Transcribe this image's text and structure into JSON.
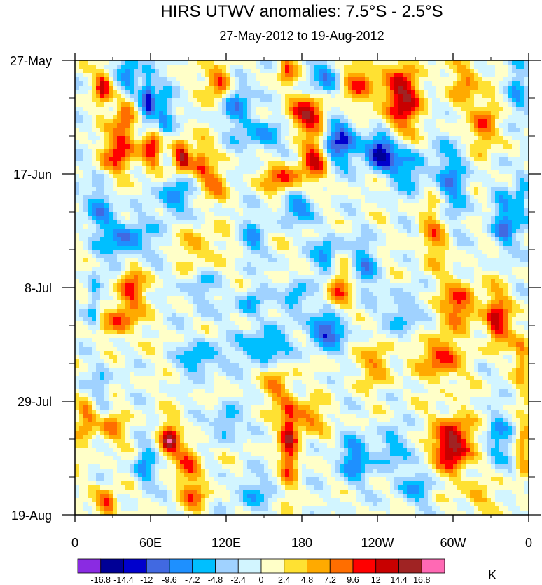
{
  "chart_data": {
    "type": "heatmap",
    "title": "HIRS UTWV anomalies: 7.5°S - 2.5°S",
    "subtitle": "27-May-2012 to 19-Aug-2012",
    "x_ticks": [
      "0",
      "60E",
      "120E",
      "180",
      "120W",
      "60W",
      "0"
    ],
    "x_tick_values": [
      0,
      60,
      120,
      180,
      240,
      300,
      360
    ],
    "xlim": [
      0,
      360
    ],
    "y_ticks": [
      "27-May",
      "17-Jun",
      "8-Jul",
      "29-Jul",
      "19-Aug"
    ],
    "y_tick_days": [
      0,
      21,
      42,
      63,
      84
    ],
    "ylim_days": [
      0,
      84
    ],
    "y_minor_step_days": 7,
    "colorbar": {
      "unit": "K",
      "levels": [
        "-16.8",
        "-14.4",
        "-12",
        "-9.6",
        "-7.2",
        "-4.8",
        "-2.4",
        "0",
        "2.4",
        "4.8",
        "7.2",
        "9.6",
        "12",
        "14.4",
        "16.8"
      ],
      "level_values": [
        -16.8,
        -14.4,
        -12,
        -9.6,
        -7.2,
        -4.8,
        -2.4,
        0,
        2.4,
        4.8,
        7.2,
        9.6,
        12,
        14.4,
        16.8
      ],
      "colors": [
        "#8a2be2",
        "#000096",
        "#0000cd",
        "#4169e1",
        "#1e90ff",
        "#00bfff",
        "#a0d2ff",
        "#d2f5ff",
        "#ffffc8",
        "#ffe132",
        "#ffaa00",
        "#ff6e00",
        "#ff0000",
        "#c80000",
        "#a02323",
        "#ff69b4"
      ]
    },
    "features": [
      {
        "x": 22,
        "d": 5,
        "v": 12,
        "rx": 6,
        "rd": 3
      },
      {
        "x": 40,
        "d": 10,
        "v": 11,
        "rx": 8,
        "rd": 4
      },
      {
        "x": 43,
        "d": 3,
        "v": -9,
        "rx": 8,
        "rd": 5
      },
      {
        "x": 58,
        "d": 8,
        "v": -13,
        "rx": 6,
        "rd": 6
      },
      {
        "x": 70,
        "d": 10,
        "v": -8,
        "rx": 7,
        "rd": 5
      },
      {
        "x": 115,
        "d": 4,
        "v": 12,
        "rx": 10,
        "rd": 3
      },
      {
        "x": 130,
        "d": 8,
        "v": -8,
        "rx": 12,
        "rd": 5
      },
      {
        "x": 168,
        "d": 2,
        "v": 9,
        "rx": 7,
        "rd": 3
      },
      {
        "x": 200,
        "d": 3,
        "v": -7,
        "rx": 15,
        "rd": 4
      },
      {
        "x": 225,
        "d": 4,
        "v": 9,
        "rx": 15,
        "rd": 4
      },
      {
        "x": 260,
        "d": 7,
        "v": 14,
        "rx": 15,
        "rd": 6
      },
      {
        "x": 310,
        "d": 4,
        "v": 8,
        "rx": 10,
        "rd": 4
      },
      {
        "x": 325,
        "d": 12,
        "v": 10,
        "rx": 10,
        "rd": 5
      },
      {
        "x": 350,
        "d": 6,
        "v": -7,
        "rx": 8,
        "rd": 6
      },
      {
        "x": 185,
        "d": 10,
        "v": 14,
        "rx": 15,
        "rd": 3
      },
      {
        "x": 150,
        "d": 14,
        "v": -8,
        "rx": 15,
        "rd": 3
      },
      {
        "x": 35,
        "d": 17,
        "v": 11,
        "rx": 12,
        "rd": 4
      },
      {
        "x": 60,
        "d": 16,
        "v": 13,
        "rx": 8,
        "rd": 4
      },
      {
        "x": 85,
        "d": 18,
        "v": 16,
        "rx": 7,
        "rd": 3
      },
      {
        "x": 100,
        "d": 19,
        "v": 8,
        "rx": 8,
        "rd": 4
      },
      {
        "x": 210,
        "d": 15,
        "v": -12,
        "rx": 15,
        "rd": 4
      },
      {
        "x": 242,
        "d": 17,
        "v": -16,
        "rx": 12,
        "rd": 3
      },
      {
        "x": 265,
        "d": 20,
        "v": -8,
        "rx": 15,
        "rd": 4
      },
      {
        "x": 165,
        "d": 22,
        "v": 10,
        "rx": 15,
        "rd": 3
      },
      {
        "x": 190,
        "d": 18,
        "v": 12,
        "rx": 10,
        "rd": 4
      },
      {
        "x": 175,
        "d": 27,
        "v": -8,
        "rx": 15,
        "rd": 3
      },
      {
        "x": 20,
        "d": 27,
        "v": -7,
        "rx": 10,
        "rd": 4
      },
      {
        "x": 80,
        "d": 25,
        "v": -9,
        "rx": 12,
        "rd": 4
      },
      {
        "x": 110,
        "d": 23,
        "v": 7,
        "rx": 10,
        "rd": 3
      },
      {
        "x": 300,
        "d": 22,
        "v": -8,
        "rx": 12,
        "rd": 7
      },
      {
        "x": 285,
        "d": 32,
        "v": 7,
        "rx": 10,
        "rd": 6
      },
      {
        "x": 340,
        "d": 30,
        "v": -9,
        "rx": 10,
        "rd": 5
      },
      {
        "x": 355,
        "d": 25,
        "v": -7,
        "rx": 6,
        "rd": 6
      },
      {
        "x": 40,
        "d": 33,
        "v": -9,
        "rx": 20,
        "rd": 4
      },
      {
        "x": 100,
        "d": 35,
        "v": 6,
        "rx": 15,
        "rd": 4
      },
      {
        "x": 140,
        "d": 33,
        "v": -6,
        "rx": 10,
        "rd": 4
      },
      {
        "x": 200,
        "d": 36,
        "v": -8,
        "rx": 10,
        "rd": 4
      },
      {
        "x": 230,
        "d": 38,
        "v": -7,
        "rx": 10,
        "rd": 5
      },
      {
        "x": 45,
        "d": 42,
        "v": 10,
        "rx": 10,
        "rd": 4
      },
      {
        "x": 35,
        "d": 48,
        "v": 9,
        "rx": 15,
        "rd": 3
      },
      {
        "x": 15,
        "d": 45,
        "v": -7,
        "rx": 6,
        "rd": 6
      },
      {
        "x": 210,
        "d": 42,
        "v": 8,
        "rx": 10,
        "rd": 4
      },
      {
        "x": 175,
        "d": 44,
        "v": -8,
        "rx": 10,
        "rd": 3
      },
      {
        "x": 140,
        "d": 45,
        "v": -7,
        "rx": 10,
        "rd": 3
      },
      {
        "x": 100,
        "d": 42,
        "v": -6,
        "rx": 10,
        "rd": 5
      },
      {
        "x": 305,
        "d": 45,
        "v": 10,
        "rx": 15,
        "rd": 4
      },
      {
        "x": 335,
        "d": 48,
        "v": 12,
        "rx": 10,
        "rd": 5
      },
      {
        "x": 260,
        "d": 47,
        "v": -7,
        "rx": 12,
        "rd": 4
      },
      {
        "x": 200,
        "d": 50,
        "v": -12,
        "rx": 15,
        "rd": 3
      },
      {
        "x": 150,
        "d": 53,
        "v": -9,
        "rx": 20,
        "rd": 3
      },
      {
        "x": 100,
        "d": 55,
        "v": -8,
        "rx": 15,
        "rd": 3
      },
      {
        "x": 290,
        "d": 55,
        "v": 11,
        "rx": 15,
        "rd": 4
      },
      {
        "x": 240,
        "d": 56,
        "v": 7,
        "rx": 12,
        "rd": 4
      },
      {
        "x": 355,
        "d": 55,
        "v": 6,
        "rx": 6,
        "rd": 6
      },
      {
        "x": 20,
        "d": 60,
        "v": -6,
        "rx": 8,
        "rd": 4
      },
      {
        "x": 160,
        "d": 60,
        "v": 7,
        "rx": 8,
        "rd": 4
      },
      {
        "x": 10,
        "d": 66,
        "v": 9,
        "rx": 8,
        "rd": 4
      },
      {
        "x": 30,
        "d": 68,
        "v": 7,
        "rx": 10,
        "rd": 3
      },
      {
        "x": 75,
        "d": 70,
        "v": 14,
        "rx": 8,
        "rd": 3
      },
      {
        "x": 90,
        "d": 74,
        "v": 9,
        "rx": 10,
        "rd": 3
      },
      {
        "x": 55,
        "d": 75,
        "v": -8,
        "rx": 8,
        "rd": 4
      },
      {
        "x": 120,
        "d": 67,
        "v": -8,
        "rx": 10,
        "rd": 3
      },
      {
        "x": 170,
        "d": 70,
        "v": 13,
        "rx": 7,
        "rd": 8
      },
      {
        "x": 185,
        "d": 66,
        "v": 8,
        "rx": 12,
        "rd": 3
      },
      {
        "x": 220,
        "d": 74,
        "v": -9,
        "rx": 12,
        "rd": 4
      },
      {
        "x": 250,
        "d": 72,
        "v": -7,
        "rx": 12,
        "rd": 4
      },
      {
        "x": 300,
        "d": 71,
        "v": 17,
        "rx": 14,
        "rd": 5
      },
      {
        "x": 335,
        "d": 70,
        "v": -7,
        "rx": 10,
        "rd": 5
      },
      {
        "x": 355,
        "d": 73,
        "v": 7,
        "rx": 5,
        "rd": 6
      },
      {
        "x": 25,
        "d": 82,
        "v": 10,
        "rx": 8,
        "rd": 3
      },
      {
        "x": 95,
        "d": 80,
        "v": 8,
        "rx": 12,
        "rd": 3
      },
      {
        "x": 140,
        "d": 80,
        "v": -6,
        "rx": 15,
        "rd": 3
      },
      {
        "x": 270,
        "d": 79,
        "v": -6,
        "rx": 15,
        "rd": 3
      },
      {
        "x": 320,
        "d": 81,
        "v": 6,
        "rx": 10,
        "rd": 3
      }
    ]
  }
}
